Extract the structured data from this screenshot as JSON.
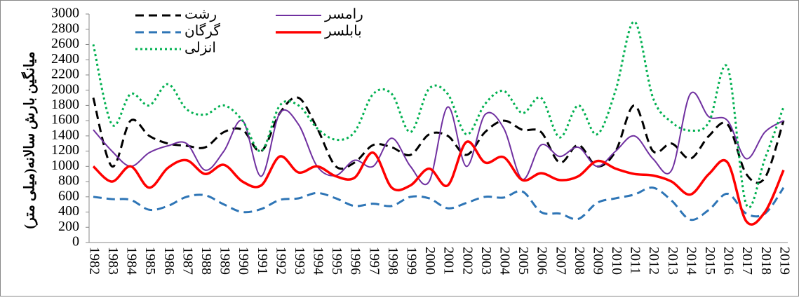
{
  "chart_data": {
    "type": "line",
    "y_label": "میانگین بارش سالانه(میلی متر)",
    "categories": [
      "1982",
      "1983",
      "1984",
      "1985",
      "1986",
      "1987",
      "1988",
      "1989",
      "1990",
      "1991",
      "1992",
      "1993",
      "1994",
      "1995",
      "1996",
      "1997",
      "1998",
      "1999",
      "2000",
      "2001",
      "2002",
      "2003",
      "2004",
      "2005",
      "2006",
      "2007",
      "2008",
      "2009",
      "2010",
      "2011",
      "2012",
      "2013",
      "2014",
      "2015",
      "2016",
      "2017",
      "2018",
      "2019"
    ],
    "ylim": [
      0,
      3000
    ],
    "yticks": [
      0,
      200,
      400,
      600,
      800,
      1000,
      1200,
      1400,
      1600,
      1800,
      2000,
      2200,
      2400,
      2600,
      2800,
      3000
    ],
    "grid": false,
    "legend": "top-left",
    "series": [
      {
        "name": "رشت",
        "color": "#000000",
        "dash": "dashed",
        "values": [
          1900,
          1000,
          1600,
          1400,
          1300,
          1270,
          1250,
          1450,
          1480,
          1200,
          1700,
          1900,
          1500,
          1000,
          1050,
          1280,
          1250,
          1150,
          1420,
          1400,
          1150,
          1450,
          1600,
          1480,
          1450,
          1050,
          1280,
          1000,
          1200,
          1800,
          1200,
          1300,
          1100,
          1400,
          1550,
          900,
          850,
          1600
        ]
      },
      {
        "name": "رامسر",
        "color": "#7030a0",
        "dash": "solid",
        "values": [
          1480,
          1200,
          1000,
          1180,
          1270,
          1300,
          950,
          1200,
          1600,
          870,
          1700,
          1550,
          1000,
          880,
          1080,
          1000,
          1370,
          1000,
          800,
          1780,
          1000,
          1680,
          1500,
          830,
          1280,
          1130,
          1250,
          1000,
          1200,
          1400,
          1100,
          950,
          1950,
          1650,
          1600,
          1100,
          1450,
          1600
        ]
      },
      {
        "name": "گرگان",
        "color": "#2e75b6",
        "dash": "dashed",
        "values": [
          600,
          570,
          560,
          430,
          480,
          600,
          620,
          500,
          400,
          440,
          560,
          580,
          650,
          580,
          480,
          510,
          480,
          600,
          580,
          450,
          520,
          600,
          590,
          670,
          400,
          380,
          310,
          520,
          580,
          630,
          720,
          550,
          300,
          430,
          640,
          380,
          380,
          720
        ]
      },
      {
        "name": "بابلسر",
        "color": "#ff0000",
        "dash": "solid",
        "values": [
          1000,
          800,
          1000,
          720,
          980,
          1080,
          900,
          1020,
          800,
          750,
          1130,
          920,
          1000,
          870,
          850,
          1180,
          720,
          750,
          970,
          750,
          1320,
          1050,
          1120,
          820,
          910,
          820,
          870,
          1070,
          970,
          900,
          880,
          800,
          630,
          900,
          1050,
          280,
          400,
          950
        ]
      },
      {
        "name": "انزلی",
        "color": "#00b050",
        "dash": "dotted",
        "values": [
          2600,
          1550,
          1950,
          1800,
          2080,
          1750,
          1680,
          1800,
          1600,
          1200,
          1800,
          1800,
          1500,
          1350,
          1450,
          1950,
          1950,
          1450,
          2020,
          1950,
          1420,
          1820,
          1990,
          1700,
          1900,
          1380,
          1800,
          1420,
          2000,
          2900,
          1900,
          1580,
          1470,
          1580,
          2300,
          500,
          1100,
          1780
        ]
      }
    ]
  }
}
